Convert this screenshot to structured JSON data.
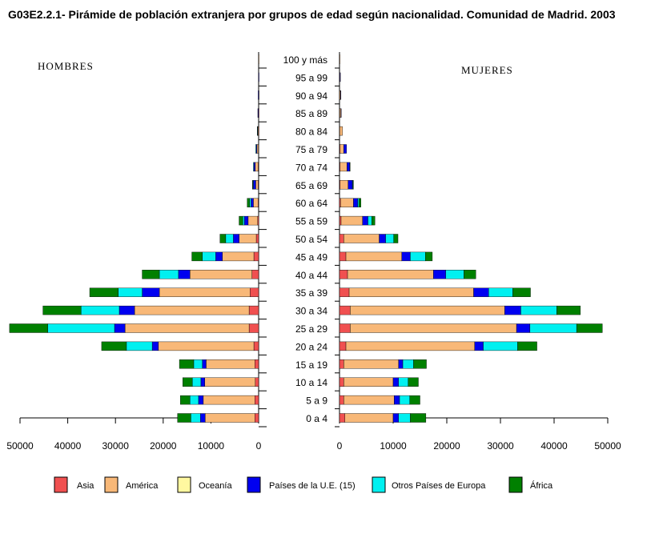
{
  "title": "G03E2.2.1- Pirámide de población extranjera por grupos de edad según nacionalidad. Comunidad de Madrid. 2003",
  "chart_data": {
    "type": "bar",
    "orientation": "horizontal-pyramid",
    "left_panel_label": "HOMBRES",
    "right_panel_label": "MUJERES",
    "categories": [
      "0 a 4",
      "5 a 9",
      "10 a 14",
      "15 a 19",
      "20 a 24",
      "25 a 29",
      "30 a 34",
      "35 a 39",
      "40 a 44",
      "45 a 49",
      "50 a 54",
      "55 a 59",
      "60 a 64",
      "65 a 69",
      "70 a 74",
      "75 a 79",
      "80 a 84",
      "85 a 89",
      "90 a 94",
      "95 a 99",
      "100 y más"
    ],
    "xlim": [
      0,
      50000
    ],
    "ticks": [
      0,
      10000,
      20000,
      30000,
      40000,
      50000
    ],
    "series_names": [
      "Asia",
      "América",
      "Oceanía",
      "Países de la U.E. (15)",
      "Otros Países de Europa",
      "África"
    ],
    "colors": [
      "#f05050",
      "#f8b878",
      "#fff8a0",
      "#0000f0",
      "#00f0f0",
      "#008000"
    ],
    "hombres": [
      [
        800,
        10400,
        0,
        1000,
        2000,
        2800
      ],
      [
        800,
        10800,
        0,
        1000,
        1800,
        2000
      ],
      [
        700,
        10600,
        0,
        800,
        1800,
        2000
      ],
      [
        800,
        10200,
        0,
        800,
        1800,
        3000
      ],
      [
        1000,
        20000,
        0,
        1300,
        5400,
        5200
      ],
      [
        2000,
        26000,
        0,
        2200,
        14000,
        8000
      ],
      [
        2000,
        24000,
        0,
        3200,
        8000,
        8000
      ],
      [
        1800,
        19000,
        0,
        3600,
        5000,
        6000
      ],
      [
        1400,
        13000,
        0,
        2400,
        4000,
        3600
      ],
      [
        1000,
        6600,
        0,
        1400,
        2800,
        2200
      ],
      [
        500,
        3600,
        0,
        1200,
        1600,
        1200
      ],
      [
        200,
        2000,
        0,
        800,
        300,
        800
      ],
      [
        100,
        1000,
        0,
        500,
        300,
        500
      ],
      [
        100,
        500,
        0,
        500,
        100,
        100
      ],
      [
        100,
        600,
        0,
        300,
        100,
        0
      ],
      [
        50,
        300,
        0,
        200,
        50,
        0
      ],
      [
        30,
        150,
        0,
        100,
        20,
        0
      ],
      [
        20,
        100,
        0,
        50,
        0,
        0
      ],
      [
        10,
        50,
        0,
        30,
        0,
        0
      ],
      [
        0,
        20,
        0,
        10,
        0,
        0
      ],
      [
        0,
        10,
        0,
        0,
        0,
        0
      ]
    ],
    "mujeres": [
      [
        1000,
        9000,
        0,
        1000,
        2200,
        2900
      ],
      [
        800,
        9400,
        0,
        1000,
        1900,
        1900
      ],
      [
        800,
        9200,
        0,
        1000,
        1800,
        1900
      ],
      [
        800,
        10200,
        0,
        800,
        2000,
        2400
      ],
      [
        1200,
        24000,
        0,
        1600,
        6400,
        3600
      ],
      [
        2000,
        31000,
        0,
        2500,
        8700,
        4800
      ],
      [
        2000,
        28800,
        0,
        3000,
        6700,
        4400
      ],
      [
        1800,
        23200,
        0,
        2800,
        4500,
        3300
      ],
      [
        1500,
        16000,
        0,
        2300,
        3400,
        2200
      ],
      [
        1200,
        10400,
        0,
        1600,
        2800,
        1300
      ],
      [
        800,
        6600,
        0,
        1200,
        1500,
        800
      ],
      [
        300,
        4000,
        0,
        1000,
        700,
        600
      ],
      [
        200,
        2400,
        0,
        800,
        200,
        400
      ],
      [
        100,
        1500,
        0,
        800,
        100,
        100
      ],
      [
        100,
        1300,
        0,
        500,
        0,
        50
      ],
      [
        100,
        700,
        0,
        500,
        0,
        0
      ],
      [
        50,
        500,
        0,
        0,
        0,
        0
      ],
      [
        50,
        200,
        0,
        50,
        0,
        0
      ],
      [
        30,
        150,
        0,
        30,
        0,
        0
      ],
      [
        0,
        80,
        0,
        30,
        0,
        0
      ],
      [
        0,
        30,
        0,
        0,
        0,
        0
      ]
    ]
  }
}
